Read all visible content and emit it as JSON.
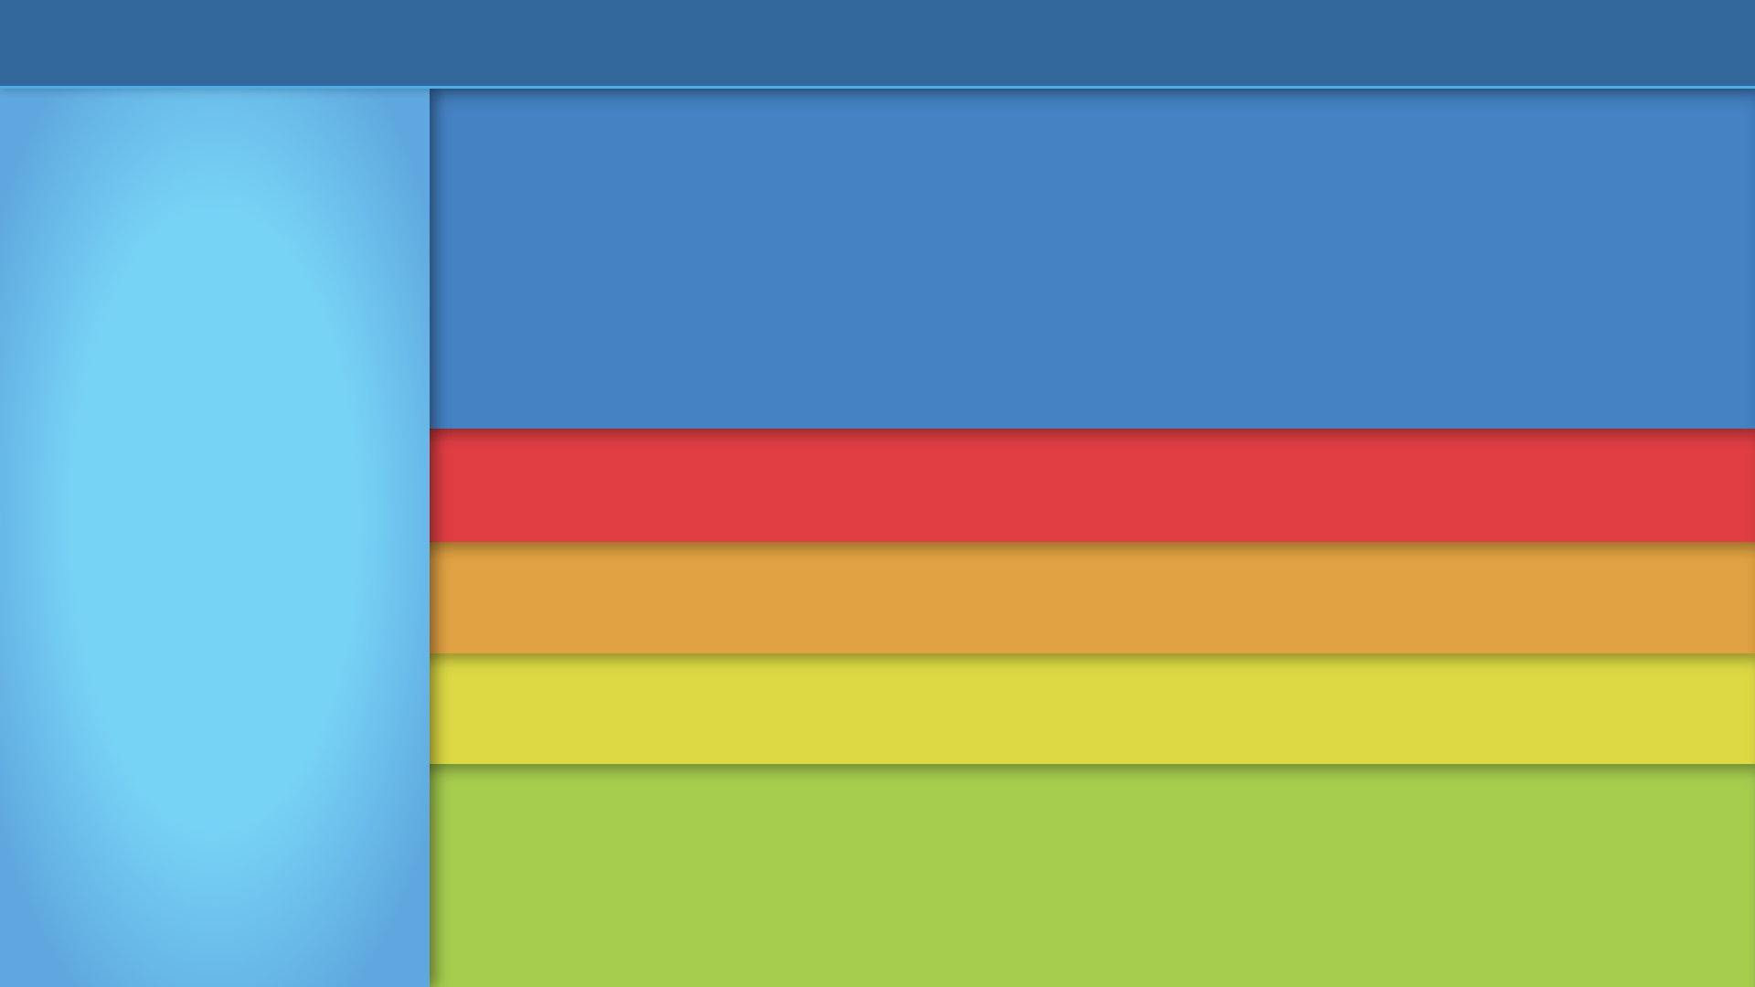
{
  "colors": {
    "top_bar": "#32689c",
    "top_bar_accent": "#4aaeea",
    "sidebar_center": "#77d3f6",
    "sidebar_edge": "#5fa8df",
    "band_blue": "#4482c3",
    "band_red": "#e03e43",
    "band_orange": "#e0a242",
    "band_yellow": "#dcd944",
    "band_green": "#a6cd4e"
  }
}
